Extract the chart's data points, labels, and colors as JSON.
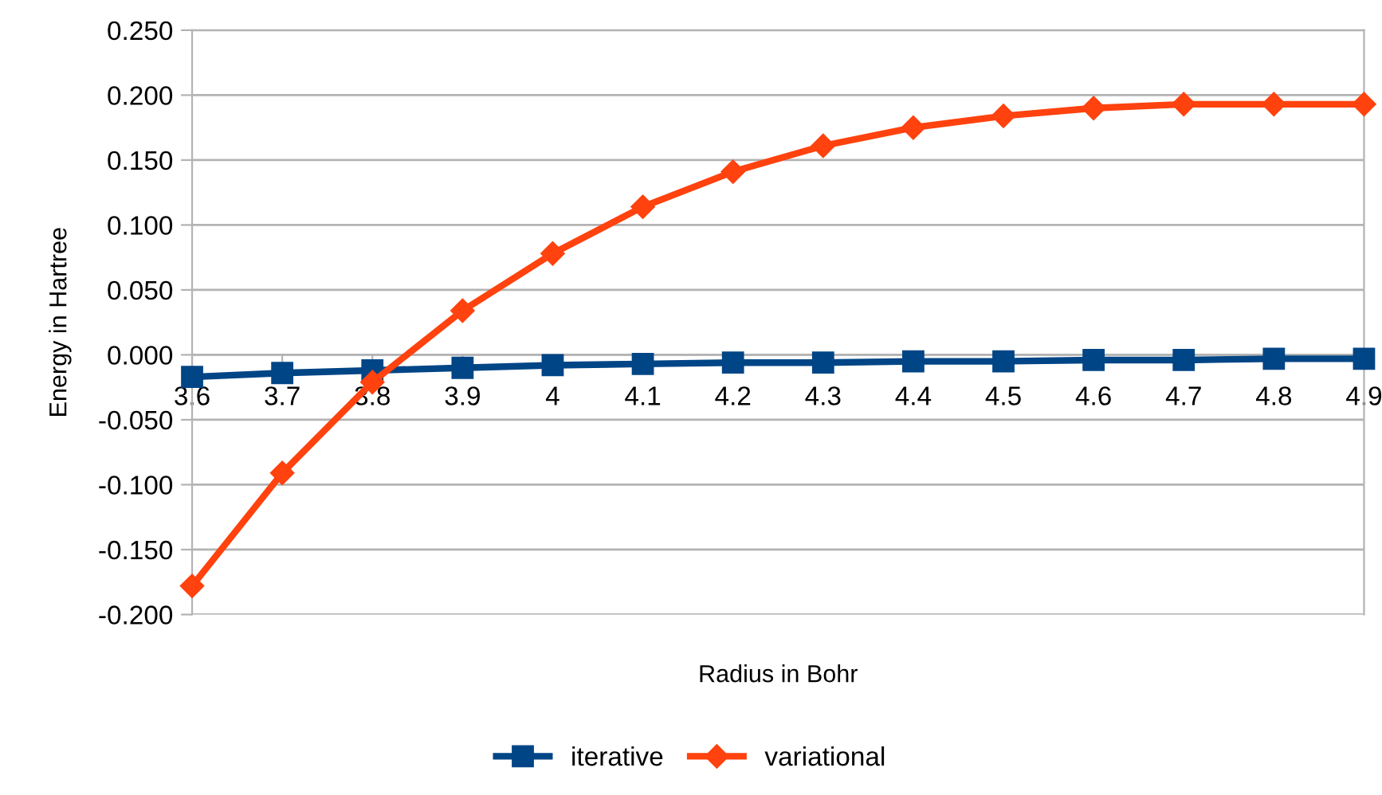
{
  "chart_data": {
    "type": "line",
    "xlabel": "Radius in Bohr",
    "ylabel": "Energy in Hartree",
    "categories": [
      "3.6",
      "3.7",
      "3.8",
      "3.9",
      "4",
      "4.1",
      "4.2",
      "4.3",
      "4.4",
      "4.5",
      "4.6",
      "4.7",
      "4.8",
      "4.9"
    ],
    "series": [
      {
        "name": "iterative",
        "color": "#004586",
        "marker": "square",
        "values": [
          -0.017,
          -0.014,
          -0.012,
          -0.01,
          -0.008,
          -0.007,
          -0.006,
          -0.006,
          -0.005,
          -0.005,
          -0.004,
          -0.004,
          -0.003,
          -0.003
        ]
      },
      {
        "name": "variational",
        "color": "#ff420e",
        "marker": "diamond",
        "values": [
          -0.178,
          -0.091,
          -0.021,
          0.034,
          0.078,
          0.114,
          0.141,
          0.161,
          0.175,
          0.184,
          0.19,
          0.193,
          0.193,
          0.193
        ]
      }
    ],
    "ylim": [
      -0.2,
      0.25
    ],
    "yticks": [
      {
        "value": -0.2,
        "label": "-0.200"
      },
      {
        "value": -0.15,
        "label": "-0.150"
      },
      {
        "value": -0.1,
        "label": "-0.100"
      },
      {
        "value": -0.05,
        "label": "-0.050"
      },
      {
        "value": 0,
        "label": "0.000"
      },
      {
        "value": 0.05,
        "label": "0.050"
      },
      {
        "value": 0.1,
        "label": "0.100"
      },
      {
        "value": 0.15,
        "label": "0.150"
      },
      {
        "value": 0.2,
        "label": "0.200"
      },
      {
        "value": 0.25,
        "label": "0.250"
      }
    ],
    "grid": "y",
    "legend": "bottom",
    "line_style": "solid"
  }
}
